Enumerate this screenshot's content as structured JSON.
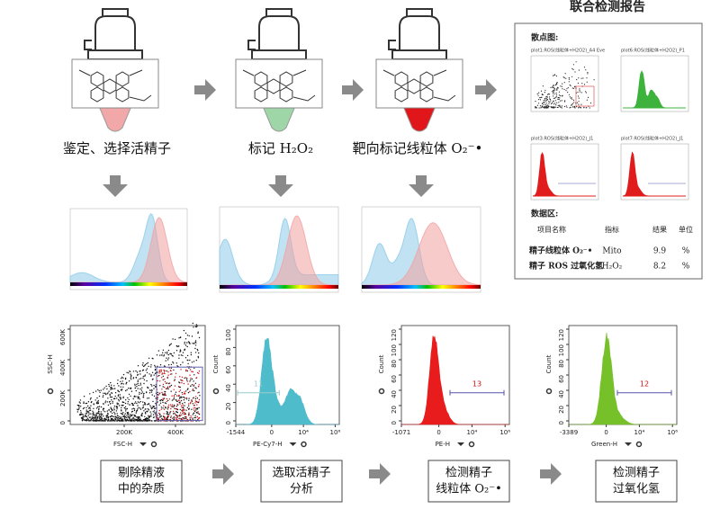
{
  "report": {
    "title": "联合检测报告",
    "scatter_heading": "散点图:",
    "plots": [
      "plot1:ROS(线粒体+H2O2)_A4 Eve",
      "plot6:ROS(线粒体+H2O2)_P1",
      "plot3:ROS(线粒体+H2O2)_J1",
      "plot7:ROS(线粒体+H2O2)_J1"
    ],
    "data_heading": "数据区:",
    "table": {
      "header": [
        "项目名称",
        "指标",
        "结果",
        "单位"
      ],
      "rows": [
        [
          "精子线粒体 O₂⁻•",
          "Mito",
          "9.9",
          "%"
        ],
        [
          "精子 ROS 过氧化氢",
          "H₂O₂",
          "8.2",
          "%"
        ]
      ]
    }
  },
  "steps": [
    {
      "label": "鉴定、选择活精子"
    },
    {
      "label": "标记 H₂O₂"
    },
    {
      "label": "靶向标记线粒体 O₂⁻•"
    }
  ],
  "flow_plots": [
    {
      "x_label": "FSC-H",
      "y_label": "SSC-H",
      "xticks": [
        "200K",
        "400K"
      ],
      "yticks": [
        "600K",
        "400K",
        "200K",
        "0"
      ],
      "gate_label": "P1"
    },
    {
      "x_label": "PE-Cy7-H",
      "y_label": "Count",
      "xticks": [
        "-1544",
        "0",
        "10⁴",
        "10⁶"
      ],
      "yticks": [
        "100",
        "80",
        "60",
        "40",
        "20",
        "0"
      ],
      "gate_label": "11"
    },
    {
      "x_label": "PE-H",
      "y_label": "Count",
      "xticks": [
        "-1071",
        "0",
        "10⁴",
        "10⁶"
      ],
      "yticks": [
        "120",
        "100",
        "80",
        "60",
        "40",
        "20",
        "0"
      ],
      "gate_label": "13"
    },
    {
      "x_label": "Green-H",
      "y_label": "Count",
      "xticks": [
        "-3389",
        "0",
        "10⁴",
        "10⁶"
      ],
      "yticks": [
        "120",
        "100",
        "80",
        "60",
        "40",
        "20",
        "0"
      ],
      "gate_label": "12"
    }
  ],
  "bottom_steps": [
    {
      "lines": [
        "剔除精液",
        "中的杂质"
      ]
    },
    {
      "lines": [
        "选取活精子",
        "分析"
      ]
    },
    {
      "lines": [
        "检测精子",
        "线粒体 O₂⁻•"
      ]
    },
    {
      "lines": [
        "检测精子",
        "过氧化氢"
      ]
    }
  ]
}
